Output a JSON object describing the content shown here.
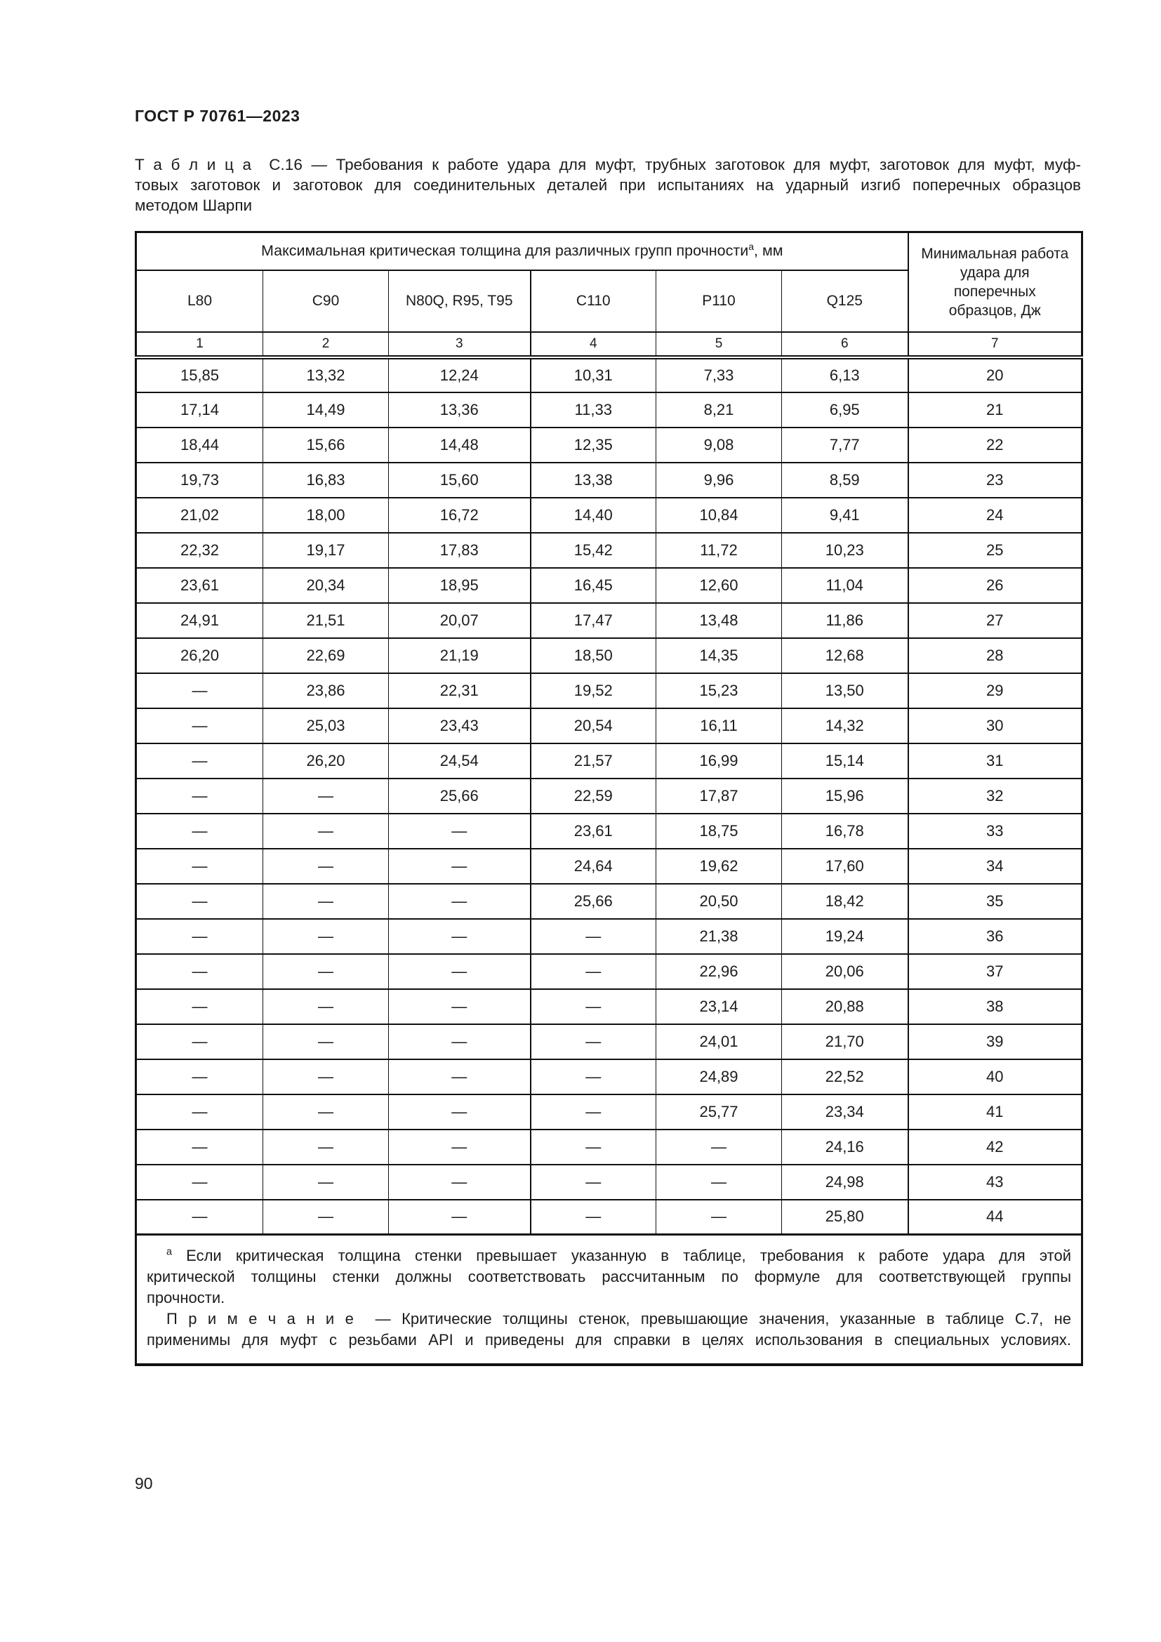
{
  "page": {
    "doc_code": "ГОСТ Р 70761—2023",
    "page_number": "90"
  },
  "caption": {
    "lines": [
      "Т а б л и ц а  С.16 — Требования к работе удара для муфт, трубных заготовок для муфт, заготовок для муфт, муф-",
      "товых заготовок и заготовок для соединительных деталей при испытаниях на ударный изгиб поперечных образцов",
      "методом Шарпи"
    ]
  },
  "table": {
    "header": {
      "span_title": "Максимальная критическая толщина для различных групп прочности",
      "span_title_sup": "а",
      "span_title_suffix": ", мм",
      "grades": [
        "L80",
        "C90",
        "N80Q, R95, T95",
        "C110",
        "P110",
        "Q125"
      ],
      "energy_header": "Минимальная работа удара для поперечных образцов, Дж",
      "col_numbers": [
        "1",
        "2",
        "3",
        "4",
        "5",
        "6",
        "7"
      ]
    },
    "rows": [
      [
        "15,85",
        "13,32",
        "12,24",
        "10,31",
        "7,33",
        "6,13",
        "20"
      ],
      [
        "17,14",
        "14,49",
        "13,36",
        "11,33",
        "8,21",
        "6,95",
        "21"
      ],
      [
        "18,44",
        "15,66",
        "14,48",
        "12,35",
        "9,08",
        "7,77",
        "22"
      ],
      [
        "19,73",
        "16,83",
        "15,60",
        "13,38",
        "9,96",
        "8,59",
        "23"
      ],
      [
        "21,02",
        "18,00",
        "16,72",
        "14,40",
        "10,84",
        "9,41",
        "24"
      ],
      [
        "22,32",
        "19,17",
        "17,83",
        "15,42",
        "11,72",
        "10,23",
        "25"
      ],
      [
        "23,61",
        "20,34",
        "18,95",
        "16,45",
        "12,60",
        "11,04",
        "26"
      ],
      [
        "24,91",
        "21,51",
        "20,07",
        "17,47",
        "13,48",
        "11,86",
        "27"
      ],
      [
        "26,20",
        "22,69",
        "21,19",
        "18,50",
        "14,35",
        "12,68",
        "28"
      ],
      [
        "—",
        "23,86",
        "22,31",
        "19,52",
        "15,23",
        "13,50",
        "29"
      ],
      [
        "—",
        "25,03",
        "23,43",
        "20,54",
        "16,11",
        "14,32",
        "30"
      ],
      [
        "—",
        "26,20",
        "24,54",
        "21,57",
        "16,99",
        "15,14",
        "31"
      ],
      [
        "—",
        "—",
        "25,66",
        "22,59",
        "17,87",
        "15,96",
        "32"
      ],
      [
        "—",
        "—",
        "—",
        "23,61",
        "18,75",
        "16,78",
        "33"
      ],
      [
        "—",
        "—",
        "—",
        "24,64",
        "19,62",
        "17,60",
        "34"
      ],
      [
        "—",
        "—",
        "—",
        "25,66",
        "20,50",
        "18,42",
        "35"
      ],
      [
        "—",
        "—",
        "—",
        "—",
        "21,38",
        "19,24",
        "36"
      ],
      [
        "—",
        "—",
        "—",
        "—",
        "22,96",
        "20,06",
        "37"
      ],
      [
        "—",
        "—",
        "—",
        "—",
        "23,14",
        "20,88",
        "38"
      ],
      [
        "—",
        "—",
        "—",
        "—",
        "24,01",
        "21,70",
        "39"
      ],
      [
        "—",
        "—",
        "—",
        "—",
        "24,89",
        "22,52",
        "40"
      ],
      [
        "—",
        "—",
        "—",
        "—",
        "25,77",
        "23,34",
        "41"
      ],
      [
        "—",
        "—",
        "—",
        "—",
        "—",
        "24,16",
        "42"
      ],
      [
        "—",
        "—",
        "—",
        "—",
        "—",
        "24,98",
        "43"
      ],
      [
        "—",
        "—",
        "—",
        "—",
        "—",
        "25,80",
        "44"
      ]
    ],
    "footnote": {
      "sup": "а",
      "lines": [
        "Если критическая толщина стенки превышает указанную в таблице, требования к работе удара для этой",
        "критической толщины стенки должны соответствовать рассчитанным по формуле для соответствующей группы",
        "прочности."
      ]
    },
    "note": {
      "lines": [
        "П р и м е ч а н и е  — Критические толщины стенок, превышающие значения, указанные в таблице С.7, не",
        "применимы для муфт с резьбами API и приведены для справки в целях использования в специальных условиях."
      ]
    }
  }
}
